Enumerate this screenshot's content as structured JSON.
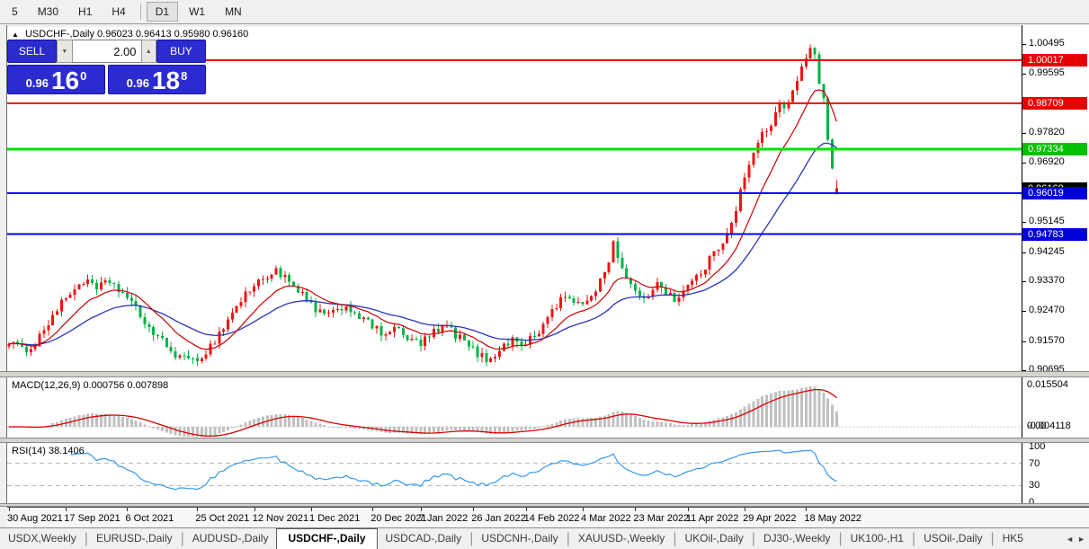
{
  "toolbar": {
    "items": [
      "5",
      "M30",
      "H1",
      "H4",
      "D1",
      "W1",
      "MN"
    ],
    "active": "D1"
  },
  "chart": {
    "collapse_glyph": "▲",
    "symbol_title": "USDCHF-,Daily",
    "ohlc_text": "0.96023 0.96413 0.95980 0.96160",
    "open": 0.96023,
    "high": 0.96413,
    "low": 0.9598,
    "close": 0.9616
  },
  "trade_panel": {
    "sell_label": "SELL",
    "buy_label": "BUY",
    "volume": "2.00",
    "spin_down": "▼",
    "spin_up": "▲",
    "sell_prefix": "0.96",
    "sell_big": "16",
    "sell_sup": "0",
    "buy_prefix": "0.96",
    "buy_big": "18",
    "buy_sup": "8"
  },
  "price_axis": {
    "ticks": [
      {
        "text": "1.00495",
        "v": 1.00495
      },
      {
        "text": "0.99595",
        "v": 0.99595
      },
      {
        "text": "0.97820",
        "v": 0.9782
      },
      {
        "text": "0.96920",
        "v": 0.9692
      },
      {
        "text": "0.95145",
        "v": 0.95145
      },
      {
        "text": "0.94245",
        "v": 0.94245
      },
      {
        "text": "0.93370",
        "v": 0.9337
      },
      {
        "text": "0.92470",
        "v": 0.9247
      },
      {
        "text": "0.91570",
        "v": 0.9157
      },
      {
        "text": "0.90695",
        "v": 0.90695
      }
    ],
    "badges": [
      {
        "text": "0.96160",
        "v": 0.9616,
        "color": "#000000"
      },
      {
        "text": "1.00017",
        "v": 1.00017,
        "color": "#e60000"
      },
      {
        "text": "0.98709",
        "v": 0.98709,
        "color": "#e60000"
      },
      {
        "text": "0.97334",
        "v": 0.97334,
        "color": "#00c000"
      },
      {
        "text": "0.96019",
        "v": 0.96019,
        "color": "#0000d8"
      },
      {
        "text": "0.94783",
        "v": 0.94783,
        "color": "#0000d8"
      }
    ]
  },
  "hlines": [
    {
      "v": 1.00017,
      "color": "#ff0000",
      "w": 2
    },
    {
      "v": 0.98709,
      "color": "#ff0000",
      "w": 2
    },
    {
      "v": 0.97334,
      "color": "#00e400",
      "w": 3
    },
    {
      "v": 0.96019,
      "color": "#0000ff",
      "w": 2
    },
    {
      "v": 0.94783,
      "color": "#0000ff",
      "w": 2
    }
  ],
  "macd": {
    "label": "MACD(12,26,9) 0.000756 0.007898",
    "fast": 12,
    "slow": 26,
    "signal_period": 9,
    "main_value": 0.000756,
    "signal_value": 0.007898,
    "axis": [
      {
        "text": "0.015504",
        "v": 0.015504
      },
      {
        "text": "0.00",
        "v": 0
      },
      {
        "text": "-0.004118",
        "v": -0.004118
      }
    ]
  },
  "rsi": {
    "label": "RSI(14) 38.1406",
    "period": 14,
    "value": 38.1406,
    "axis": [
      {
        "text": "100",
        "v": 100
      },
      {
        "text": "70",
        "v": 70
      },
      {
        "text": "30",
        "v": 30
      },
      {
        "text": "0",
        "v": 0
      }
    ],
    "levels": [
      70,
      30
    ]
  },
  "date_axis": {
    "labels": [
      {
        "i": 0,
        "text": "30 Aug 2021"
      },
      {
        "i": 13,
        "text": "17 Sep 2021"
      },
      {
        "i": 27,
        "text": "6 Oct 2021"
      },
      {
        "i": 43,
        "text": "25 Oct 2021"
      },
      {
        "i": 56,
        "text": "12 Nov 2021"
      },
      {
        "i": 69,
        "text": "1 Dec 2021"
      },
      {
        "i": 83,
        "text": "20 Dec 2021"
      },
      {
        "i": 94,
        "text": "7 Jan 2022"
      },
      {
        "i": 106,
        "text": "26 Jan 2022"
      },
      {
        "i": 118,
        "text": "14 Feb 2022"
      },
      {
        "i": 131,
        "text": "4 Mar 2022"
      },
      {
        "i": 143,
        "text": "23 Mar 2022"
      },
      {
        "i": 155,
        "text": "11 Apr 2022"
      },
      {
        "i": 168,
        "text": "29 Apr 2022"
      },
      {
        "i": 182,
        "text": "18 May 2022"
      }
    ]
  },
  "tabs": {
    "items": [
      "USDX,Weekly",
      "EURUSD-,Daily",
      "AUDUSD-,Daily",
      "USDCHF-,Daily",
      "USDCAD-,Daily",
      "USDCNH-,Daily",
      "XAUUSD-,Weekly",
      "UKOil-,Daily",
      "DJ30-,Weekly",
      "UK100-,H1",
      "USOil-,Daily",
      "HK5"
    ],
    "active_index": 3,
    "scroll_left": "◄",
    "scroll_right": "►"
  },
  "colors": {
    "bull": "#f01414",
    "bear": "#00b246",
    "ma_fast": "#cc0000",
    "ma_slow": "#2a35bb",
    "macd_bar": "#c0c0c0",
    "macd_signal": "#dd0000",
    "rsi_line": "#3399ee",
    "level_dash": "#b8b8b8"
  },
  "chart_data": {
    "type": "candlestick",
    "symbol": "USDCHF-",
    "timeframe": "Daily",
    "n_candles": 190,
    "view_price_range": [
      0.9067,
      1.0101
    ],
    "x_range": [
      "30 Aug 2021",
      "18 May 2022"
    ],
    "close_waypoints": [
      [
        0,
        0.916
      ],
      [
        3,
        0.9128
      ],
      [
        6,
        0.915
      ],
      [
        10,
        0.9235
      ],
      [
        14,
        0.9302
      ],
      [
        17,
        0.934
      ],
      [
        20,
        0.9312
      ],
      [
        23,
        0.9338
      ],
      [
        26,
        0.93
      ],
      [
        29,
        0.9252
      ],
      [
        33,
        0.918
      ],
      [
        37,
        0.9128
      ],
      [
        41,
        0.9094
      ],
      [
        45,
        0.9122
      ],
      [
        48,
        0.918
      ],
      [
        51,
        0.9242
      ],
      [
        54,
        0.93
      ],
      [
        58,
        0.9345
      ],
      [
        61,
        0.9372
      ],
      [
        64,
        0.933
      ],
      [
        67,
        0.9292
      ],
      [
        70,
        0.9252
      ],
      [
        73,
        0.923
      ],
      [
        76,
        0.9262
      ],
      [
        79,
        0.9246
      ],
      [
        82,
        0.921
      ],
      [
        85,
        0.918
      ],
      [
        88,
        0.9196
      ],
      [
        91,
        0.9162
      ],
      [
        94,
        0.915
      ],
      [
        97,
        0.9182
      ],
      [
        100,
        0.92
      ],
      [
        103,
        0.9166
      ],
      [
        106,
        0.913
      ],
      [
        109,
        0.91
      ],
      [
        112,
        0.9132
      ],
      [
        115,
        0.9162
      ],
      [
        118,
        0.915
      ],
      [
        121,
        0.9182
      ],
      [
        124,
        0.9252
      ],
      [
        127,
        0.9292
      ],
      [
        130,
        0.9262
      ],
      [
        133,
        0.9292
      ],
      [
        136,
        0.9362
      ],
      [
        138,
        0.9448
      ],
      [
        140,
        0.9382
      ],
      [
        142,
        0.9322
      ],
      [
        144,
        0.928
      ],
      [
        146,
        0.9302
      ],
      [
        148,
        0.933
      ],
      [
        150,
        0.931
      ],
      [
        152,
        0.9282
      ],
      [
        155,
        0.9322
      ],
      [
        158,
        0.9362
      ],
      [
        161,
        0.942
      ],
      [
        164,
        0.9482
      ],
      [
        166,
        0.956
      ],
      [
        168,
        0.9648
      ],
      [
        170,
        0.972
      ],
      [
        172,
        0.9778
      ],
      [
        174,
        0.9812
      ],
      [
        176,
        0.9868
      ],
      [
        177,
        0.9846
      ],
      [
        179,
        0.9902
      ],
      [
        181,
        0.9988
      ],
      [
        183,
        1.0038
      ],
      [
        184,
        1.0018
      ],
      [
        185,
        0.993
      ],
      [
        186,
        0.9886
      ],
      [
        187,
        0.9762
      ],
      [
        188,
        0.9676
      ],
      [
        189,
        0.9616
      ]
    ],
    "last_candle": {
      "open": 0.96023,
      "high": 0.96413,
      "low": 0.9598,
      "close": 0.9616
    }
  }
}
